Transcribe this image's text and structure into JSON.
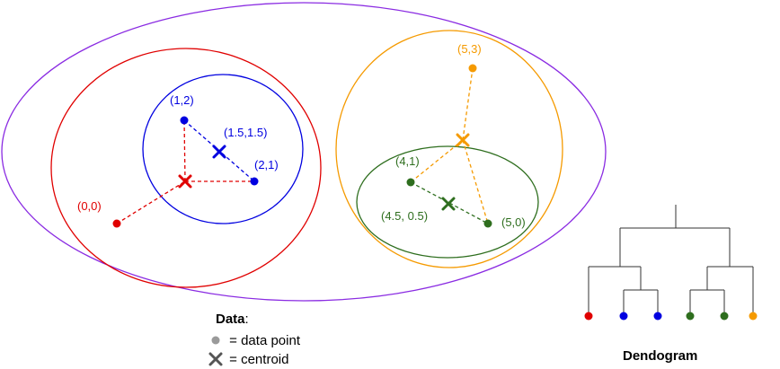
{
  "points": [
    {
      "label": "(0,0)",
      "color": "#e00000"
    },
    {
      "label": "(1,2)",
      "color": "#0000e0"
    },
    {
      "label": "(2,1)",
      "color": "#0000e0"
    },
    {
      "label": "(4,1)",
      "color": "#2e6e1e"
    },
    {
      "label": "(5,0)",
      "color": "#2e6e1e"
    },
    {
      "label": "(5,3)",
      "color": "#f59a00"
    }
  ],
  "centroids": [
    {
      "label": "(1.5,1.5)",
      "color": "#0000e0"
    },
    {
      "label": "(4.5, 0.5)",
      "color": "#2e6e1e"
    },
    {
      "label": "",
      "color": "#e00000"
    },
    {
      "label": "",
      "color": "#f59a00"
    }
  ],
  "clusters": {
    "outer_color": "#8a2be2",
    "red_color": "#e00000",
    "blue_color": "#0000e0",
    "orange_color": "#f59a00",
    "green_color": "#2e6e1e"
  },
  "legend": {
    "title": "Data",
    "colon": ":",
    "point_text": " = data point",
    "centroid_text": " = centroid",
    "point_color": "#9a9a9a",
    "centroid_color": "#555555"
  },
  "dendrogram": {
    "title": "Dendogram",
    "leaf_colors": [
      "#e00000",
      "#0000e0",
      "#0000e0",
      "#2e6e1e",
      "#2e6e1e",
      "#f59a00"
    ]
  }
}
